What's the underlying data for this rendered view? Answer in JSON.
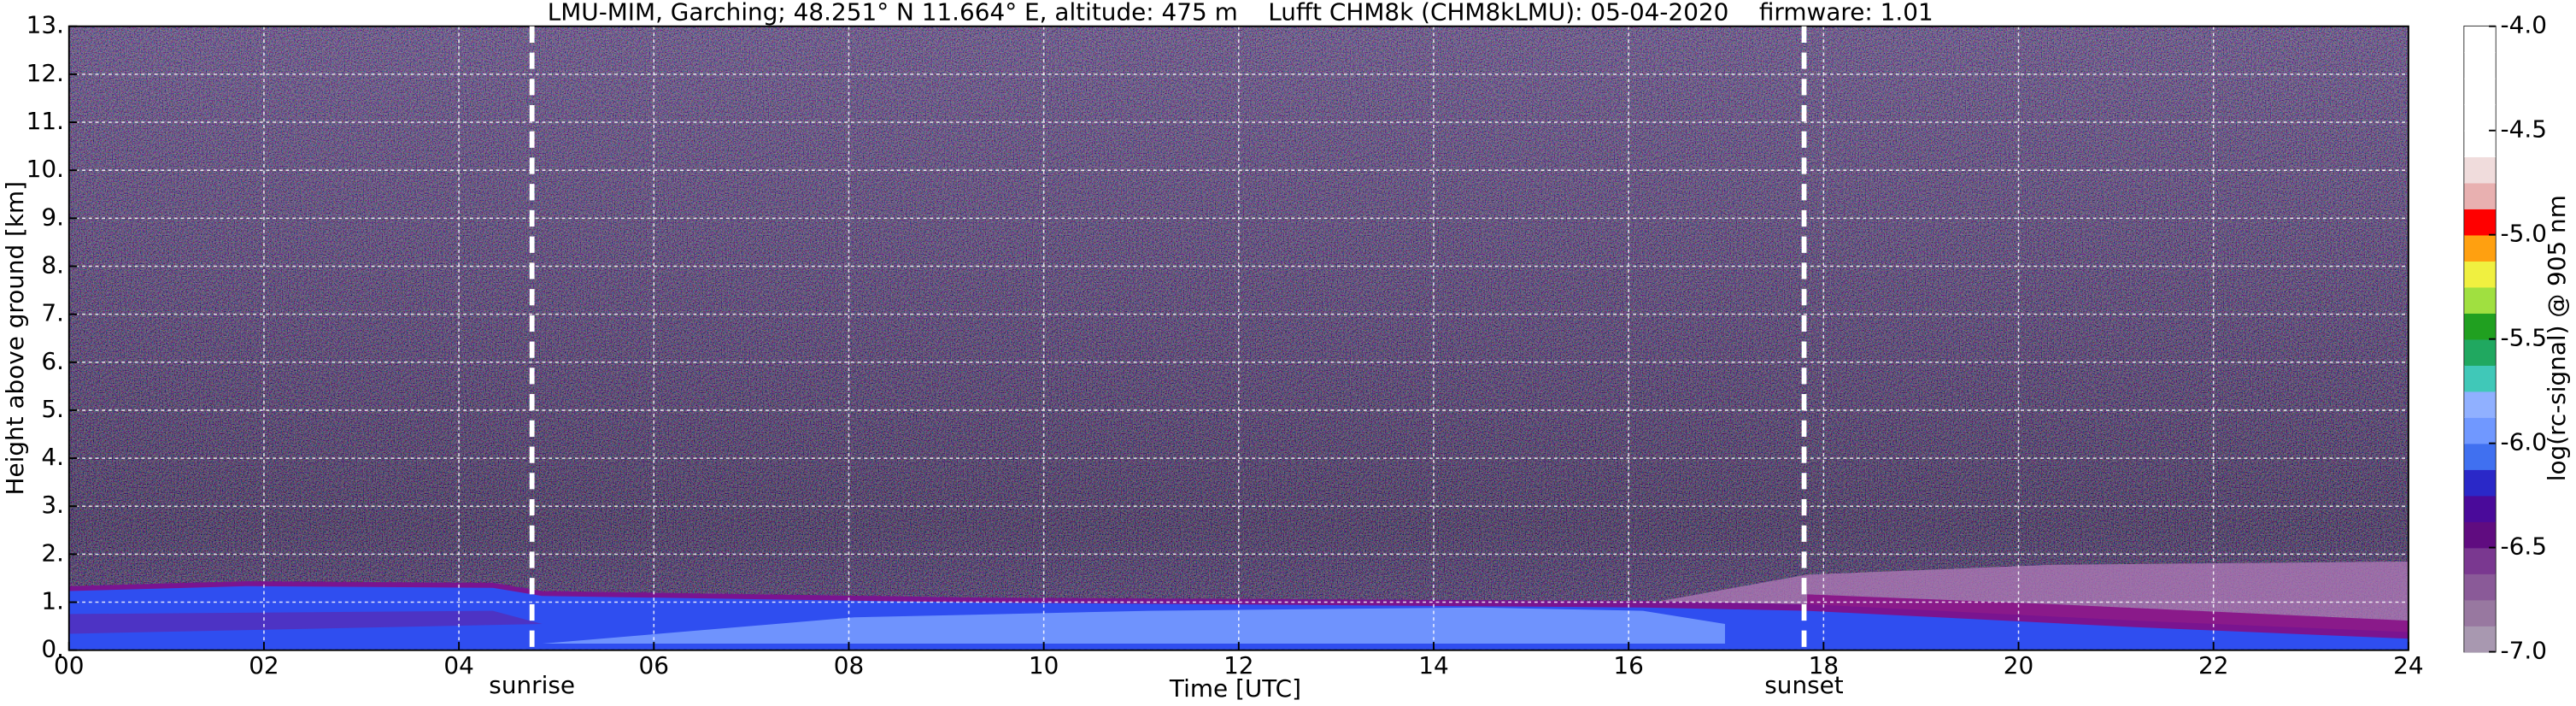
{
  "chart_data": {
    "type": "heatmap",
    "title": "LMU-MIM, Garching; 48.251° N 11.664° E, altitude: 475 m    Lufft CHM8k (CHM8kLMU): 05-04-2020    firmware: 1.01",
    "xlabel": "Time [UTC]",
    "ylabel": "Height above ground [km]",
    "xlim": [
      0,
      24
    ],
    "xticks": [
      {
        "value": 0,
        "label": "00"
      },
      {
        "value": 2,
        "label": "02"
      },
      {
        "value": 4,
        "label": "04"
      },
      {
        "value": 6,
        "label": "06"
      },
      {
        "value": 8,
        "label": "08"
      },
      {
        "value": 10,
        "label": "10"
      },
      {
        "value": 12,
        "label": "12"
      },
      {
        "value": 14,
        "label": "14"
      },
      {
        "value": 16,
        "label": "16"
      },
      {
        "value": 18,
        "label": "18"
      },
      {
        "value": 20,
        "label": "20"
      },
      {
        "value": 22,
        "label": "22"
      },
      {
        "value": 24,
        "label": "24"
      }
    ],
    "ylim": [
      0,
      13
    ],
    "yticks": [
      {
        "value": 0,
        "label": "0."
      },
      {
        "value": 1,
        "label": "1."
      },
      {
        "value": 2,
        "label": "2."
      },
      {
        "value": 3,
        "label": "3."
      },
      {
        "value": 4,
        "label": "4."
      },
      {
        "value": 5,
        "label": "5."
      },
      {
        "value": 6,
        "label": "6."
      },
      {
        "value": 7,
        "label": "7."
      },
      {
        "value": 8,
        "label": "8."
      },
      {
        "value": 9,
        "label": "9."
      },
      {
        "value": 10,
        "label": "10."
      },
      {
        "value": 11,
        "label": "11."
      },
      {
        "value": 12,
        "label": "12."
      },
      {
        "value": 13,
        "label": "13."
      }
    ],
    "grid": true,
    "annotations": [
      {
        "x": 4.75,
        "label": "sunrise"
      },
      {
        "x": 17.8,
        "label": "sunset"
      }
    ],
    "colorbar": {
      "label": "log(rc-signal) @ 905 nm",
      "lim": [
        -7,
        -4
      ],
      "ticks": [
        {
          "value": -4,
          "label": "-4.0"
        },
        {
          "value": -4.5,
          "label": "-4.5"
        },
        {
          "value": -5,
          "label": "-5.0"
        },
        {
          "value": -5.5,
          "label": "-5.5"
        },
        {
          "value": -6,
          "label": "-6.0"
        },
        {
          "value": -6.5,
          "label": "-6.5"
        },
        {
          "value": -7,
          "label": "-7.0"
        }
      ],
      "colors": [
        "#a898b0",
        "#9878a0",
        "#8a5a98",
        "#7a3890",
        "#600c80",
        "#4a0a9a",
        "#2a28c8",
        "#4070f0",
        "#7098ff",
        "#90b0ff",
        "#40c8b8",
        "#20a860",
        "#20a020",
        "#a0e040",
        "#f0f040",
        "#ffa010",
        "#ff0000",
        "#e8b0b0",
        "#f0dcdc",
        "#ffffff",
        "#ffffff",
        "#ffffff",
        "#ffffff",
        "#ffffff"
      ]
    }
  }
}
